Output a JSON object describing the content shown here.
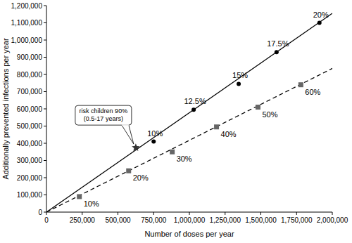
{
  "chart_data": {
    "type": "scatter",
    "x_label": "Number of doses per year",
    "y_label": "Additionally prevented infections per year",
    "xlim": [
      0,
      2000000
    ],
    "ylim": [
      0,
      1200000
    ],
    "xticks": [
      0,
      {
        "value": 250000,
        "label": "250,000"
      },
      {
        "value": 500000,
        "label": "500,000"
      },
      {
        "value": 750000,
        "label": "750,000"
      },
      {
        "value": 1000000,
        "label": "1,000,000"
      },
      {
        "value": 1250000,
        "label": "1,250,000"
      },
      {
        "value": 1500000,
        "label": "1,500,000"
      },
      {
        "value": 1750000,
        "label": "1,750,000"
      },
      {
        "value": 2000000,
        "label": "2,000,000"
      }
    ],
    "yticks": [
      0,
      {
        "value": 100000,
        "label": "100,000"
      },
      {
        "value": 200000,
        "label": "200,000"
      },
      {
        "value": 300000,
        "label": "300,000"
      },
      {
        "value": 400000,
        "label": "400,000"
      },
      {
        "value": 500000,
        "label": "500,000"
      },
      {
        "value": 600000,
        "label": "600,000"
      },
      {
        "value": 700000,
        "label": "700,000"
      },
      {
        "value": 800000,
        "label": "800,000"
      },
      {
        "value": 900000,
        "label": "900,000"
      },
      {
        "value": 1000000,
        "label": "1,000,000"
      },
      {
        "value": 1100000,
        "label": "1,100,000"
      },
      {
        "value": 1200000,
        "label": "1,200,000"
      }
    ],
    "grid": false,
    "series": [
      {
        "type": "line",
        "line_style": "solid",
        "color": "#000000",
        "x": [
          0,
          2000000
        ],
        "values": [
          0,
          1155000
        ]
      },
      {
        "type": "line",
        "line_style": "dashed",
        "color": "#000000",
        "x": [
          0,
          2000000
        ],
        "values": [
          0,
          835000
        ]
      },
      {
        "type": "scatter",
        "marker": "circle",
        "color": "#000000",
        "x": [
          750000,
          1030000,
          1345000,
          1610000,
          1910000
        ],
        "values": [
          410000,
          595000,
          745000,
          930000,
          1100000
        ],
        "point_labels": [
          "10%",
          "12.5%",
          "15%",
          "17.5%",
          "20%"
        ]
      },
      {
        "type": "scatter",
        "marker": "square",
        "color": "#666666",
        "x": [
          230000,
          575000,
          880000,
          1190000,
          1480000,
          1780000
        ],
        "values": [
          90000,
          240000,
          350000,
          495000,
          610000,
          740000
        ],
        "point_labels": [
          "10%",
          "20%",
          "30%",
          "40%",
          "50%",
          "60%"
        ]
      },
      {
        "type": "scatter",
        "marker": "star",
        "color": "#333333",
        "x": [
          625000
        ],
        "values": [
          375000
        ],
        "callout": [
          "risk children 90%",
          "(0.5-17 years)"
        ]
      }
    ]
  }
}
